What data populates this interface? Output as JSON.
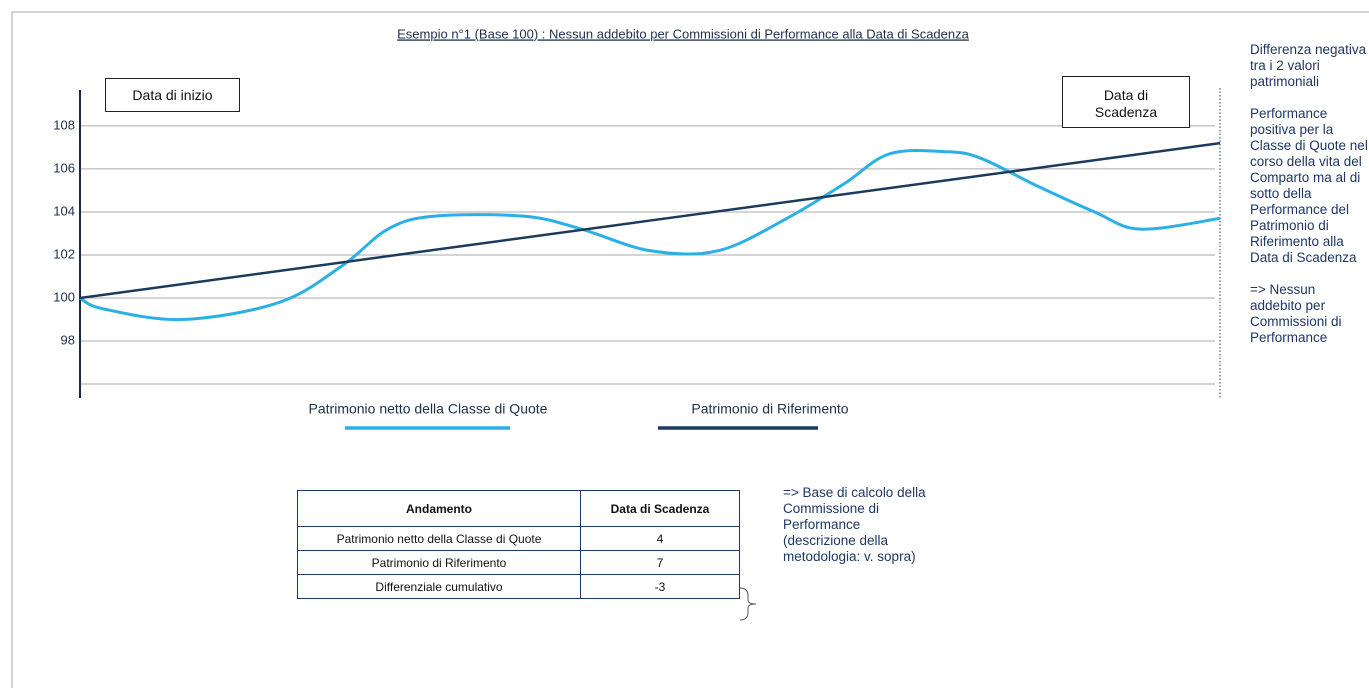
{
  "chart_data": {
    "type": "line",
    "title": "Esempio n°1 (Base 100) : Nessun addebito per Commissioni di Performance alla Data di Scadenza",
    "annotations": [
      "Data di inizio",
      "Data di Scadenza"
    ],
    "side_notes": [
      "Differenza negativa tra i 2 valori patrimoniali",
      "Performance positiva per la Classe di Quote nel corso della vita del Comparto ma al di sotto della Performance del Patrimonio di Riferimento alla Data di Scadenza",
      "=> Nessun addebito per Commissioni di Performance"
    ],
    "xlim": [
      0,
      100
    ],
    "ylim": [
      95.35,
      109.67
    ],
    "yticks": [
      98,
      100,
      102,
      104,
      106,
      108
    ],
    "ygrid": [
      96,
      98,
      100,
      102,
      104,
      106,
      108
    ],
    "series": [
      {
        "name": "Patrimonio netto della Classe di Quote",
        "color": "#2bb0e6",
        "x": [
          0,
          2,
          9,
          17.5,
          23,
          27,
          31,
          39,
          44,
          50,
          56,
          62,
          67,
          71,
          76,
          79,
          84,
          89,
          93,
          100
        ],
        "values": [
          100,
          99.5,
          99.0,
          99.8,
          101.5,
          103.2,
          103.8,
          103.8,
          103.2,
          102.2,
          102.2,
          103.7,
          105.3,
          106.7,
          106.8,
          106.5,
          105.2,
          104.0,
          103.2,
          103.7
        ]
      },
      {
        "name": "Patrimonio di Riferimento",
        "color": "#1b3a5c",
        "x": [
          0,
          100
        ],
        "values": [
          100,
          107.2
        ]
      }
    ]
  },
  "table": {
    "header": [
      "Andamento",
      "Data di Scadenza"
    ],
    "rows": [
      [
        "Patrimonio netto della Classe di Quote",
        "4"
      ],
      [
        "Patrimonio di Riferimento",
        "7"
      ],
      [
        "Differenziale cumulativo",
        "-3"
      ]
    ],
    "note": "=> Base di calcolo della Commissione di Performance (descrizione della metodologia: v. sopra)"
  }
}
